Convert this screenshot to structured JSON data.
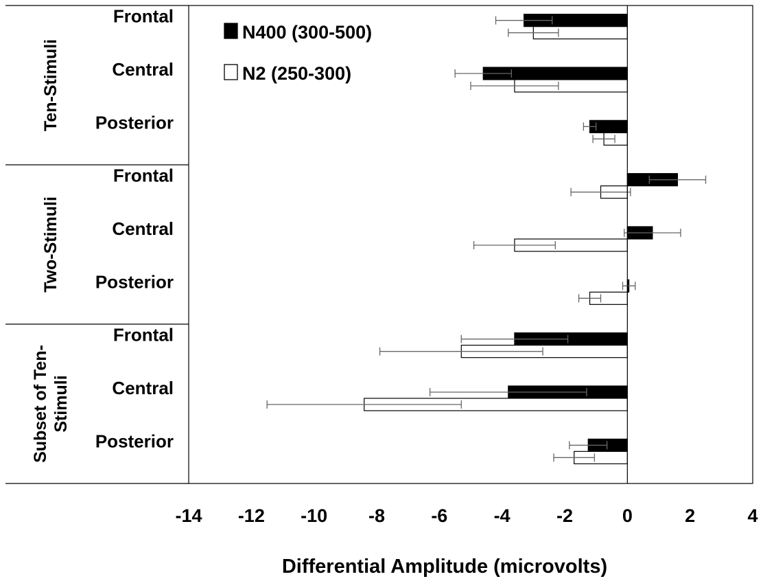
{
  "chart_data": {
    "type": "bar",
    "orientation": "horizontal",
    "xlabel": "Differential Amplitude (microvolts)",
    "xlim": [
      -14,
      4
    ],
    "xticks": [
      -14,
      -12,
      -10,
      -8,
      -6,
      -4,
      -2,
      0,
      2,
      4
    ],
    "grid": false,
    "legend_position": "top-left",
    "groups": [
      {
        "label_lines": [
          "Ten-Stimuli"
        ],
        "regions": [
          "Frontal",
          "Central",
          "Posterior"
        ]
      },
      {
        "label_lines": [
          "Two-Stimuli"
        ],
        "regions": [
          "Frontal",
          "Central",
          "Posterior"
        ]
      },
      {
        "label_lines": [
          "Subset of Ten-",
          "Stimuli"
        ],
        "regions": [
          "Frontal",
          "Central",
          "Posterior"
        ]
      }
    ],
    "series": [
      {
        "name": "N400 (300-500)",
        "fill": "#000000",
        "values": [
          -3.3,
          -4.6,
          -1.2,
          1.6,
          0.8,
          0.05,
          -3.6,
          -3.8,
          -1.25
        ],
        "errors": [
          0.9,
          0.9,
          0.2,
          0.9,
          0.9,
          0.2,
          1.7,
          2.5,
          0.6
        ]
      },
      {
        "name": "N2 (250-300)",
        "fill": "#ffffff",
        "values": [
          -3.0,
          -3.6,
          -0.75,
          -0.85,
          -3.6,
          -1.2,
          -5.3,
          -8.4,
          -1.7
        ],
        "errors": [
          0.8,
          1.4,
          0.35,
          0.95,
          1.3,
          0.35,
          2.6,
          3.1,
          0.65
        ]
      }
    ]
  }
}
